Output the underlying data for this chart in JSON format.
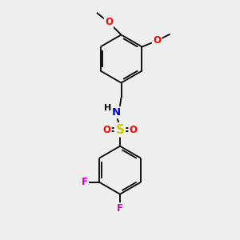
{
  "bg_color": "#efefef",
  "bond_color": "#000000",
  "atom_colors": {
    "O": "#ff0000",
    "N": "#0000cd",
    "S": "#cccc00",
    "F": "#cc00cc",
    "C": "#000000",
    "H": "#000000"
  },
  "figsize": [
    3.0,
    3.0
  ],
  "dpi": 100
}
